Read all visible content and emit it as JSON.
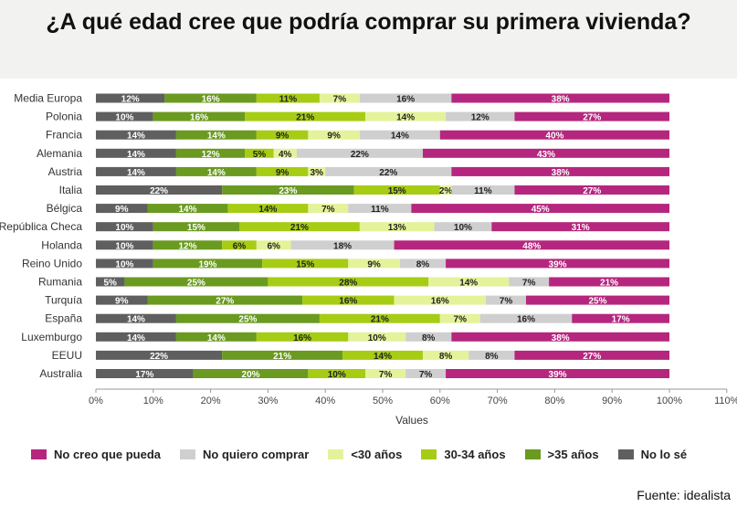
{
  "title": "¿A qué edad cree que podría comprar su primera vivienda?",
  "source": "Fuente: idealista",
  "chart_data": {
    "type": "bar",
    "orientation": "horizontal",
    "stacked": true,
    "categories": [
      "Media Europa",
      "Polonia",
      "Francia",
      "Alemania",
      "Austria",
      "Italia",
      "Bélgica",
      "República Checa",
      "Holanda",
      "Reino Unido",
      "Rumania",
      "Turquía",
      "España",
      "Luxemburgo",
      "EEUU",
      "Australia"
    ],
    "series": [
      {
        "name": "No lo sé",
        "color": "#5f5f5f",
        "label_color": "#ffffff",
        "values": [
          12,
          10,
          14,
          14,
          14,
          22,
          9,
          10,
          10,
          10,
          5,
          9,
          14,
          14,
          22,
          17
        ]
      },
      {
        "name": ">35 años",
        "color": "#6a9a1f",
        "label_color": "#ffffff",
        "values": [
          16,
          16,
          14,
          12,
          14,
          23,
          14,
          15,
          12,
          19,
          25,
          27,
          25,
          14,
          21,
          20
        ]
      },
      {
        "name": "30-34 años",
        "color": "#a6cc14",
        "label_color": "#222222",
        "values": [
          11,
          21,
          9,
          5,
          9,
          15,
          14,
          21,
          6,
          15,
          28,
          16,
          21,
          16,
          14,
          10
        ]
      },
      {
        "name": "<30 años",
        "color": "#e4f29a",
        "label_color": "#222222",
        "values": [
          7,
          14,
          9,
          4,
          3,
          2,
          7,
          13,
          6,
          9,
          14,
          16,
          7,
          10,
          8,
          7
        ]
      },
      {
        "name": "No quiero comprar",
        "color": "#cfcfcf",
        "label_color": "#222222",
        "values": [
          16,
          12,
          14,
          22,
          22,
          11,
          11,
          10,
          18,
          8,
          7,
          7,
          16,
          8,
          8,
          7
        ]
      },
      {
        "name": "No creo que pueda",
        "color": "#b5267e",
        "label_color": "#ffffff",
        "values": [
          38,
          27,
          40,
          43,
          38,
          27,
          45,
          31,
          48,
          39,
          21,
          25,
          17,
          38,
          27,
          39
        ]
      }
    ],
    "value_suffix": "%",
    "xlim": [
      0,
      110
    ],
    "xticks": [
      0,
      10,
      20,
      30,
      40,
      50,
      60,
      70,
      80,
      90,
      100,
      110
    ],
    "xlabel": "Values",
    "legend_order": [
      "No creo que pueda",
      "No quiero comprar",
      "<30 años",
      "30-34 años",
      ">35 años",
      "No lo sé"
    ],
    "legend_position": "bottom",
    "grid": false
  }
}
